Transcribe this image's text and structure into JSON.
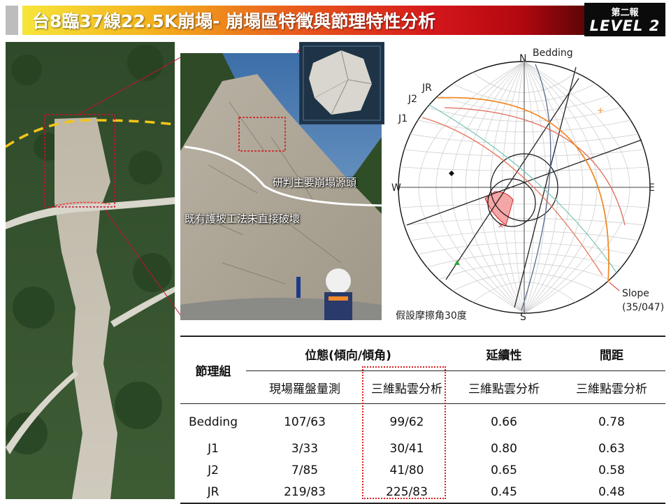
{
  "header": {
    "title": "台8臨37線22.5K崩塌- 崩塌區特徵與節理特性分析",
    "badge_top": "第二報",
    "badge_bottom": "LEVEL 2"
  },
  "photo": {
    "annotation_source": "研判主要崩塌源頭",
    "annotation_protection": "既有護坡工法未直接破壞"
  },
  "stereonet": {
    "north": "N",
    "south": "S",
    "east": "E",
    "west": "W",
    "labels": {
      "bedding": "Bedding",
      "jr": "JR",
      "j2": "J2",
      "j1": "J1",
      "slope": "Slope",
      "slope_orientation": "(35/047)"
    },
    "friction_note": "假設摩擦角30度",
    "colors": {
      "bedding": "#5a6a8c",
      "jr": "#e06a5a",
      "j2": "#7cc7b8",
      "j1": "#e8765a",
      "slope": "#f08a2a",
      "wedge": "#f5a6a6"
    }
  },
  "table": {
    "header_group": "節理組",
    "header_orientation": "位態(傾向/傾角)",
    "header_persistence": "延續性",
    "header_spacing": "間距",
    "sub_field": "現場羅盤量測",
    "sub_cloud": "三維點雲分析",
    "sub_persistence": "三維點雲分析",
    "sub_spacing": "三維點雲分析",
    "rows": [
      {
        "name": "Bedding",
        "field": "107/63",
        "cloud": "99/62",
        "persistence": "0.66",
        "spacing": "0.78"
      },
      {
        "name": "J1",
        "field": "3/33",
        "cloud": "30/41",
        "persistence": "0.80",
        "spacing": "0.63"
      },
      {
        "name": "J2",
        "field": "7/85",
        "cloud": "41/80",
        "persistence": "0.65",
        "spacing": "0.58"
      },
      {
        "name": "JR",
        "field": "219/83",
        "cloud": "225/83",
        "persistence": "0.45",
        "spacing": "0.48"
      }
    ]
  }
}
